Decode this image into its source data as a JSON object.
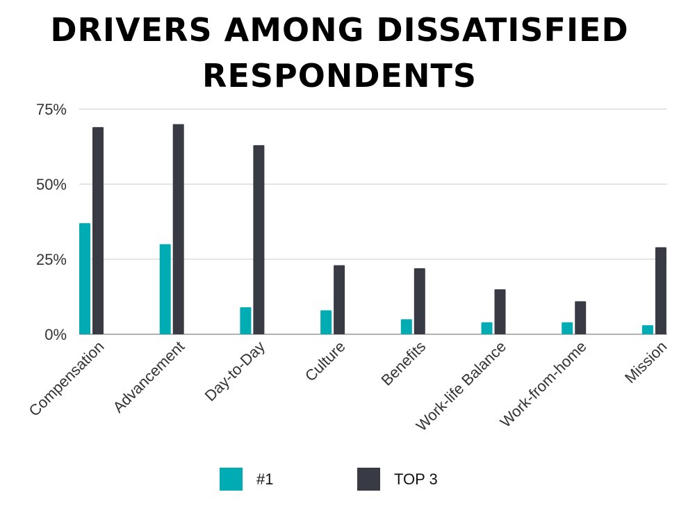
{
  "chart_data": {
    "type": "bar",
    "title": "DRIVERS AMONG DISSATISFIED RESPONDENTS",
    "title_lines": [
      "DRIVERS AMONG DISSATISFIED",
      "RESPONDENTS"
    ],
    "xlabel": "",
    "ylabel": "",
    "ylim": [
      0,
      75
    ],
    "yticks": [
      0,
      25,
      50,
      75
    ],
    "ytick_labels": [
      "0%",
      "25%",
      "50%",
      "75%"
    ],
    "grid": true,
    "legend_position": "bottom",
    "categories": [
      "Compensation",
      "Advancement",
      "Day-to-Day",
      "Culture",
      "Benefits",
      "Work-life Balance",
      "Work-from-home",
      "Mission"
    ],
    "series": [
      {
        "name": "#1",
        "color": "#00acb3",
        "values": [
          37,
          30,
          9,
          8,
          5,
          4,
          4,
          3
        ]
      },
      {
        "name": "TOP 3",
        "color": "#383b43",
        "values": [
          69,
          70,
          63,
          23,
          22,
          15,
          11,
          29
        ]
      }
    ]
  }
}
